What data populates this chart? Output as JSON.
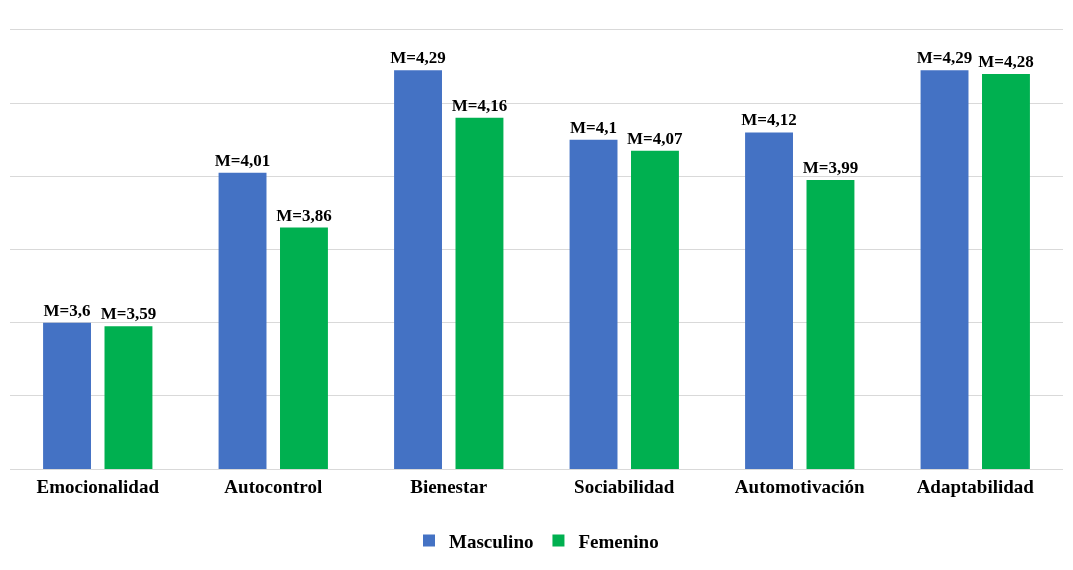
{
  "chart_data": {
    "type": "bar",
    "categories": [
      "Emocionalidad",
      "Autocontrol",
      "Bienestar",
      "Sociabilidad",
      "Automotivación",
      "Adaptabilidad"
    ],
    "series": [
      {
        "name": "Masculino",
        "color": "#4472c4",
        "values": [
          3.6,
          4.01,
          4.29,
          4.1,
          4.12,
          4.29
        ],
        "value_labels": [
          "M=3,6",
          "M=4,01",
          "M=4,29",
          "M=4,1",
          "M=4,12",
          "M=4,29"
        ]
      },
      {
        "name": "Femenino",
        "color": "#00b050",
        "values": [
          3.59,
          3.86,
          4.16,
          4.07,
          3.99,
          4.28
        ],
        "value_labels": [
          "M=3,59",
          "M=3,86",
          "M=4,16",
          "M=4,07",
          "M=3,99",
          "M=4,28"
        ]
      }
    ],
    "ylim": [
      3.2,
      4.4
    ],
    "yticks": [
      {
        "value": 3.2,
        "label": null
      },
      {
        "value": 3.4,
        "label": null
      },
      {
        "value": 3.6,
        "label": null
      },
      {
        "value": 3.8,
        "label": null
      },
      {
        "value": 4.0,
        "label": null
      },
      {
        "value": 4.2,
        "label": null
      },
      {
        "value": 4.4,
        "label": null
      }
    ],
    "tick_labels": "x",
    "grid": "y",
    "legend": "bottom"
  }
}
